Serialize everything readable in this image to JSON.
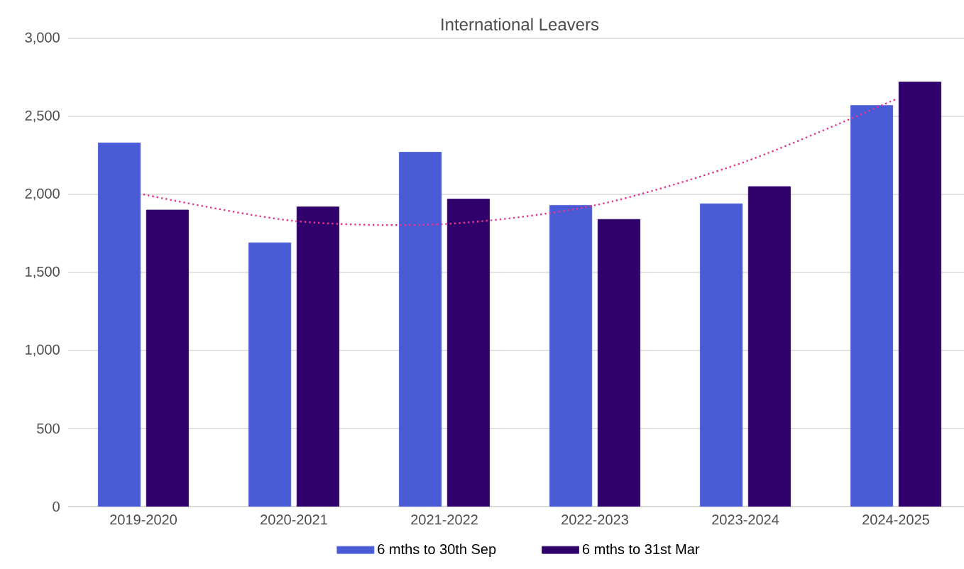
{
  "chart_data": {
    "type": "bar",
    "title": "International Leavers",
    "categories": [
      "2019-2020",
      "2020-2021",
      "2021-2022",
      "2022-2023",
      "2023-2024",
      "2024-2025"
    ],
    "series": [
      {
        "name": "6 mths to 30th Sep",
        "color": "#4a5bd6",
        "values": [
          2330,
          1690,
          2270,
          1930,
          1940,
          2570
        ]
      },
      {
        "name": "6 mths to 31st Mar",
        "color": "#30006b",
        "values": [
          1900,
          1920,
          1970,
          1840,
          2050,
          2720
        ]
      },
      {
        "type": "line",
        "line_style": "dotted",
        "color": "#e6378f",
        "x": [
          "2019-2020",
          "2020-2021",
          "2021-2022",
          "2022-2023",
          "2023-2024",
          "2024-2025"
        ],
        "values": [
          2000,
          1830,
          1810,
          1930,
          2210,
          2610
        ]
      }
    ],
    "ylim": [
      0,
      3000
    ],
    "yticks": [
      {
        "value": 0,
        "label": "0"
      },
      {
        "value": 500,
        "label": "500"
      },
      {
        "value": 1000,
        "label": "1,000"
      },
      {
        "value": 1500,
        "label": "1,500"
      },
      {
        "value": 2000,
        "label": "2,000"
      },
      {
        "value": 2500,
        "label": "2,500"
      },
      {
        "value": 3000,
        "label": "3,000"
      }
    ],
    "grid": "y",
    "legend": "bottom"
  }
}
